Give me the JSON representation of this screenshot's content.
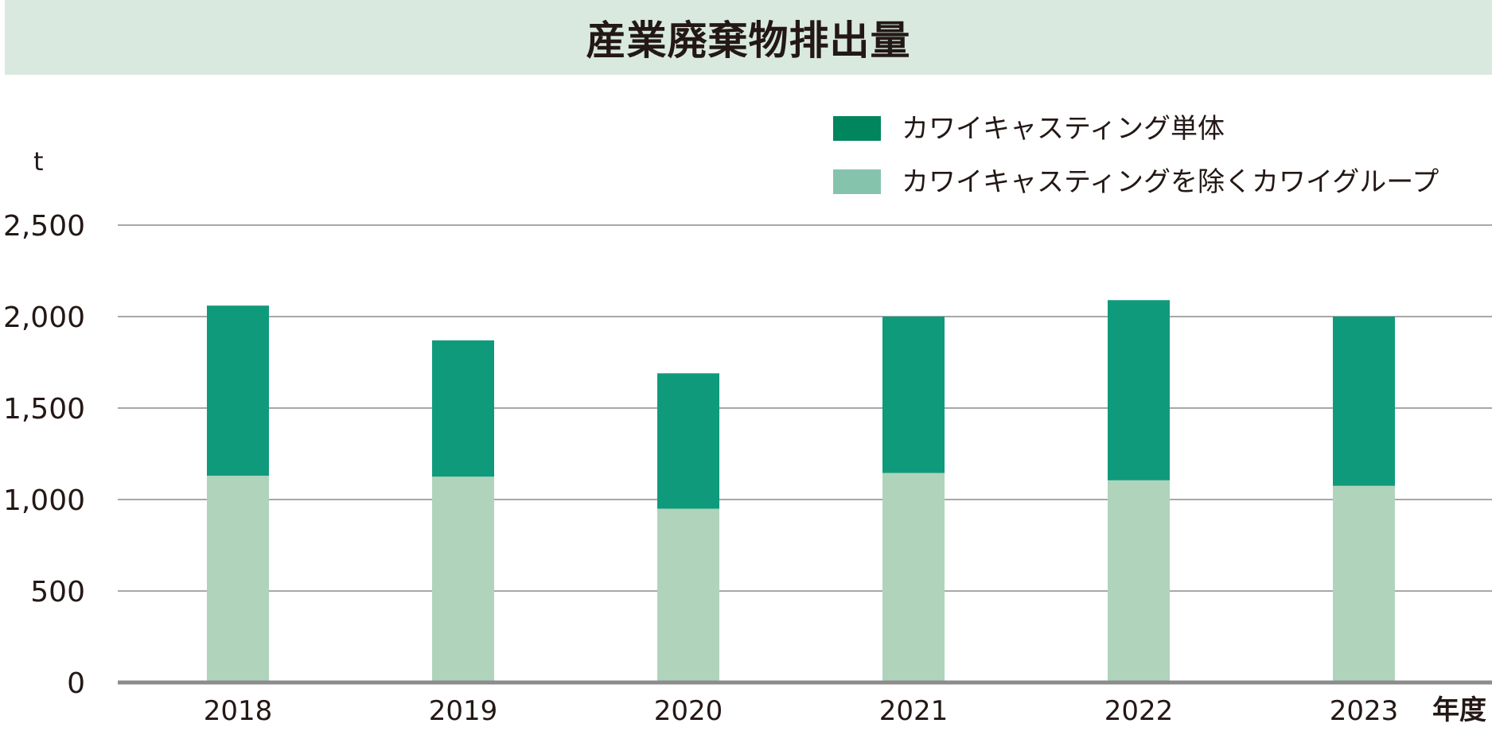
{
  "chart_data": {
    "type": "bar",
    "stacked": true,
    "title": "産業廃棄物排出量",
    "ylabel": "t",
    "xlabel": "年度",
    "categories": [
      "2018",
      "2019",
      "2020",
      "2021",
      "2022",
      "2023"
    ],
    "series": [
      {
        "name": "カワイキャスティングを除くカワイグループ",
        "color": "#afd4bb",
        "values": [
          1130,
          1125,
          950,
          1145,
          1105,
          1075
        ]
      },
      {
        "name": "カワイキャスティング単体",
        "color": "#109a7c",
        "values": [
          930,
          745,
          740,
          855,
          985,
          925
        ]
      }
    ],
    "legend_order": [
      1,
      0
    ],
    "legend_swatch_colors": [
      "#00855d",
      "#86c3ad"
    ],
    "ylim": [
      0,
      2500
    ],
    "yticks": [
      0,
      500,
      1000,
      1500,
      2000,
      2500
    ],
    "ytick_labels": [
      "0",
      "500",
      "1,000",
      "1,500",
      "2,000",
      "2,500"
    ],
    "grid": true,
    "legend_position": "top-right"
  }
}
